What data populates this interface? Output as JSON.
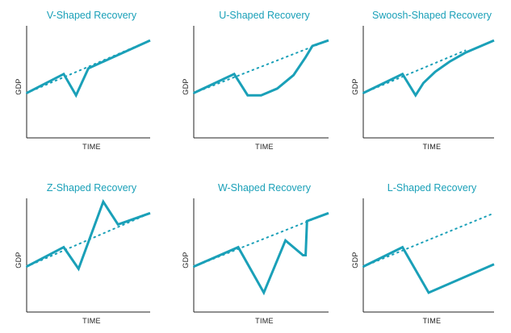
{
  "colors": {
    "accent": "#1aa0b8",
    "axis": "#222222"
  },
  "chart_data": [
    {
      "type": "line",
      "title": "V-Shaped Recovery",
      "xlabel": "TIME",
      "ylabel": "GDP",
      "trend": {
        "x": [
          0,
          1.0
        ],
        "y": [
          0.4,
          0.87
        ]
      },
      "series": [
        {
          "values_x": [
            0,
            0.3,
            0.4,
            0.5,
            1.0
          ],
          "values_y": [
            0.4,
            0.57,
            0.38,
            0.62,
            0.87
          ]
        }
      ]
    },
    {
      "type": "line",
      "title": "U-Shaped Recovery",
      "xlabel": "TIME",
      "ylabel": "GDP",
      "trend": {
        "x": [
          0,
          1.0
        ],
        "y": [
          0.4,
          0.87
        ]
      },
      "series": [
        {
          "values_x": [
            0,
            0.3,
            0.4,
            0.5,
            0.62,
            0.74,
            0.83,
            0.88,
            1.0
          ],
          "values_y": [
            0.4,
            0.57,
            0.38,
            0.38,
            0.44,
            0.56,
            0.72,
            0.82,
            0.87
          ]
        }
      ]
    },
    {
      "type": "line",
      "title": "Swoosh-Shaped Recovery",
      "xlabel": "TIME",
      "ylabel": "GDP",
      "trend": {
        "x": [
          0,
          0.78
        ],
        "y": [
          0.4,
          0.78
        ]
      },
      "series": [
        {
          "values_x": [
            0,
            0.3,
            0.4,
            0.46,
            0.55,
            0.66,
            0.78,
            1.0
          ],
          "values_y": [
            0.4,
            0.57,
            0.38,
            0.49,
            0.59,
            0.68,
            0.76,
            0.87
          ]
        }
      ]
    },
    {
      "type": "line",
      "title": "Z-Shaped Recovery",
      "xlabel": "TIME",
      "ylabel": "GDP",
      "trend": {
        "x": [
          0,
          1.0
        ],
        "y": [
          0.4,
          0.87
        ]
      },
      "series": [
        {
          "values_x": [
            0,
            0.3,
            0.42,
            0.62,
            0.74,
            1.0
          ],
          "values_y": [
            0.4,
            0.57,
            0.38,
            0.97,
            0.77,
            0.87
          ]
        }
      ]
    },
    {
      "type": "line",
      "title": "W-Shaped Recovery",
      "xlabel": "TIME",
      "ylabel": "GDP",
      "trend": {
        "x": [
          0,
          1.0
        ],
        "y": [
          0.4,
          0.87
        ]
      },
      "series": [
        {
          "values_x": [
            0,
            0.33,
            0.52,
            0.68,
            0.81,
            0.83,
            0.84,
            1.0
          ],
          "values_y": [
            0.4,
            0.57,
            0.17,
            0.63,
            0.5,
            0.5,
            0.8,
            0.87
          ]
        }
      ]
    },
    {
      "type": "line",
      "title": "L-Shaped Recovery",
      "xlabel": "TIME",
      "ylabel": "GDP",
      "trend": {
        "x": [
          0,
          1.0
        ],
        "y": [
          0.4,
          0.87
        ]
      },
      "series": [
        {
          "values_x": [
            0,
            0.3,
            0.5,
            1.0
          ],
          "values_y": [
            0.4,
            0.57,
            0.17,
            0.42
          ]
        }
      ]
    }
  ]
}
